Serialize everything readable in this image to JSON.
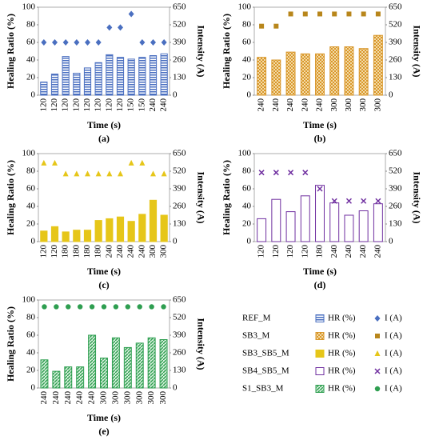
{
  "chart_data": [
    {
      "type": "bar",
      "name": "REF_M",
      "label": "(a)",
      "xlabel": "Time (s)",
      "ylabel": "Healing Ratio (%)",
      "y2label": "Intensity (A)",
      "categories": [
        "120",
        "120",
        "120",
        "120",
        "120",
        "120",
        "120",
        "120",
        "150",
        "150",
        "240",
        "240"
      ],
      "series": [
        {
          "name": "HR (%)",
          "color": "#4a6fc0",
          "bar_style": "stripes",
          "values": [
            15,
            24,
            44,
            25,
            31,
            37,
            46,
            43,
            41,
            43,
            45,
            47
          ]
        },
        {
          "name": "I (A)",
          "axis": "y2",
          "color": "#4a6fc0",
          "marker": "diamond",
          "values": [
            390,
            390,
            390,
            390,
            390,
            390,
            500,
            500,
            600,
            390,
            390,
            390
          ]
        }
      ],
      "ylim": [
        0,
        100
      ],
      "yticks": [
        0,
        20,
        40,
        60,
        80,
        100
      ],
      "y2lim": [
        0,
        650
      ],
      "y2ticks": [
        0,
        130,
        260,
        390,
        520,
        650
      ]
    },
    {
      "type": "bar",
      "name": "SB3_M",
      "label": "(b)",
      "xlabel": "Time (s)",
      "ylabel": "Healing Ratio (%)",
      "y2label": "Intensity (A)",
      "categories": [
        "240",
        "240",
        "240",
        "240",
        "240",
        "300",
        "300",
        "300",
        "300"
      ],
      "series": [
        {
          "name": "HR (%)",
          "color": "#d9972b",
          "bar_style": "checker",
          "values": [
            43,
            40,
            49,
            47,
            47,
            55,
            55,
            53,
            68
          ]
        },
        {
          "name": "I (A)",
          "axis": "y2",
          "color": "#b8861b",
          "marker": "square",
          "values": [
            510,
            510,
            600,
            600,
            600,
            600,
            600,
            600,
            600
          ]
        }
      ],
      "ylim": [
        0,
        100
      ],
      "yticks": [
        0,
        20,
        40,
        60,
        80,
        100
      ],
      "y2lim": [
        0,
        650
      ],
      "y2ticks": [
        0,
        130,
        260,
        390,
        520,
        650
      ]
    },
    {
      "type": "bar",
      "name": "SB3_SB5_M",
      "label": "(c)",
      "xlabel": "Time (s)",
      "ylabel": "Healing Ratio (%)",
      "y2label": "Intensity (A)",
      "categories": [
        "120",
        "120",
        "180",
        "180",
        "180",
        "180",
        "240",
        "240",
        "240",
        "240",
        "300",
        "300"
      ],
      "series": [
        {
          "name": "HR (%)",
          "color": "#e6c619",
          "bar_style": "solid",
          "values": [
            12,
            17,
            11,
            13,
            13,
            24,
            26,
            28,
            23,
            31,
            47,
            30
          ]
        },
        {
          "name": "I (A)",
          "axis": "y2",
          "color": "#e6c619",
          "marker": "triangle",
          "values": [
            580,
            580,
            500,
            500,
            500,
            500,
            500,
            500,
            580,
            580,
            500,
            500
          ]
        }
      ],
      "ylim": [
        0,
        100
      ],
      "yticks": [
        0,
        20,
        40,
        60,
        80,
        100
      ],
      "y2lim": [
        0,
        650
      ],
      "y2ticks": [
        0,
        130,
        260,
        390,
        520,
        650
      ]
    },
    {
      "type": "bar",
      "name": "SB4_SB5_M",
      "label": "(d)",
      "xlabel": "Time (s)",
      "ylabel": "Healing Ratio (%)",
      "y2label": "Intensity (A)",
      "categories": [
        "120",
        "120",
        "120",
        "120",
        "180",
        "240",
        "240",
        "240",
        "240"
      ],
      "series": [
        {
          "name": "HR (%)",
          "color": "#7030a0",
          "bar_style": "outline",
          "values": [
            26,
            48,
            34,
            52,
            64,
            44,
            30,
            35,
            43
          ]
        },
        {
          "name": "I (A)",
          "axis": "y2",
          "color": "#7030a0",
          "marker": "x",
          "values": [
            510,
            510,
            510,
            510,
            390,
            300,
            300,
            300,
            300
          ]
        }
      ],
      "ylim": [
        0,
        100
      ],
      "yticks": [
        0,
        20,
        40,
        60,
        80,
        100
      ],
      "y2lim": [
        0,
        650
      ],
      "y2ticks": [
        0,
        130,
        260,
        390,
        520,
        650
      ]
    },
    {
      "type": "bar",
      "name": "S1_SB3_M",
      "label": "(e)",
      "xlabel": "Time (s)",
      "ylabel": "Healing Ratio (%)",
      "y2label": "Intensity (A)",
      "categories": [
        "240",
        "240",
        "240",
        "240",
        "240",
        "300",
        "300",
        "300",
        "300",
        "300",
        "300"
      ],
      "series": [
        {
          "name": "HR (%)",
          "color": "#2e9e50",
          "bar_style": "hatch",
          "values": [
            32,
            19,
            24,
            24,
            60,
            34,
            57,
            46,
            51,
            57,
            55
          ]
        },
        {
          "name": "I (A)",
          "axis": "y2",
          "color": "#2e9e50",
          "marker": "circle",
          "values": [
            600,
            600,
            600,
            600,
            600,
            600,
            600,
            600,
            600,
            600,
            600
          ]
        }
      ],
      "ylim": [
        0,
        100
      ],
      "yticks": [
        0,
        20,
        40,
        60,
        80,
        100
      ],
      "y2lim": [
        0,
        650
      ],
      "y2ticks": [
        0,
        130,
        260,
        390,
        520,
        650
      ]
    }
  ]
}
